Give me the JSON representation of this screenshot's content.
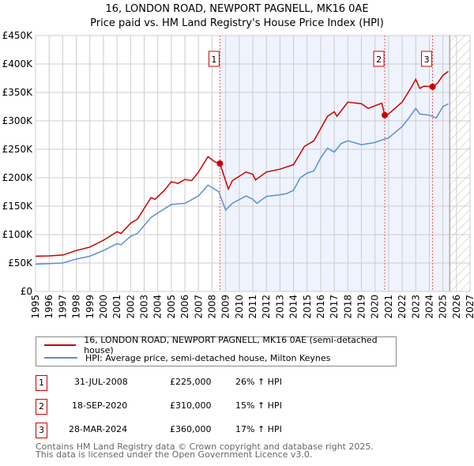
{
  "title_line1": "16, LONDON ROAD, NEWPORT PAGNELL, MK16 0AE",
  "title_line2": "Price paid vs. HM Land Registry's House Price Index (HPI)",
  "chart_data": {
    "type": "line",
    "ylim": [
      0,
      450000
    ],
    "xlim": [
      1995,
      2027
    ],
    "yticks": [
      {
        "v": 0,
        "label": "£0"
      },
      {
        "v": 50000,
        "label": "£50K"
      },
      {
        "v": 100000,
        "label": "£100K"
      },
      {
        "v": 150000,
        "label": "£150K"
      },
      {
        "v": 200000,
        "label": "£200K"
      },
      {
        "v": 250000,
        "label": "£250K"
      },
      {
        "v": 300000,
        "label": "£300K"
      },
      {
        "v": 350000,
        "label": "£350K"
      },
      {
        "v": 400000,
        "label": "£400K"
      },
      {
        "v": 450000,
        "label": "£450K"
      }
    ],
    "xticks": [
      "1995",
      "1996",
      "1997",
      "1998",
      "1999",
      "2000",
      "2001",
      "2002",
      "2003",
      "2004",
      "2005",
      "2006",
      "2007",
      "2008",
      "2009",
      "2010",
      "2011",
      "2012",
      "2013",
      "2014",
      "2015",
      "2016",
      "2017",
      "2018",
      "2019",
      "2020",
      "2021",
      "2022",
      "2023",
      "2024",
      "2025",
      "2026",
      "2027"
    ],
    "forecast_start": 2025.5,
    "series": [
      {
        "name": "16, LONDON ROAD, NEWPORT PAGNELL, MK16 0AE (semi-detached house)",
        "color": "#cc0000",
        "points": [
          [
            1995,
            62000
          ],
          [
            1996,
            62500
          ],
          [
            1997,
            64000
          ],
          [
            1998,
            72000
          ],
          [
            1999,
            78000
          ],
          [
            2000,
            90000
          ],
          [
            2001,
            105000
          ],
          [
            2001.3,
            102000
          ],
          [
            2002,
            120000
          ],
          [
            2002.5,
            127000
          ],
          [
            2003.5,
            165000
          ],
          [
            2003.8,
            162000
          ],
          [
            2004.5,
            178000
          ],
          [
            2005,
            193000
          ],
          [
            2005.5,
            190000
          ],
          [
            2006,
            197000
          ],
          [
            2006.5,
            195000
          ],
          [
            2007,
            210000
          ],
          [
            2007.7,
            237000
          ],
          [
            2008.2,
            228000
          ],
          [
            2008.58,
            225000
          ],
          [
            2009.2,
            180000
          ],
          [
            2009.5,
            195000
          ],
          [
            2010.5,
            210000
          ],
          [
            2011,
            206000
          ],
          [
            2011.2,
            196000
          ],
          [
            2012,
            210000
          ],
          [
            2013,
            215000
          ],
          [
            2014,
            223000
          ],
          [
            2014.8,
            255000
          ],
          [
            2015.5,
            265000
          ],
          [
            2016.5,
            308000
          ],
          [
            2017,
            316000
          ],
          [
            2017.2,
            308000
          ],
          [
            2018,
            333000
          ],
          [
            2019,
            330000
          ],
          [
            2019.5,
            322000
          ],
          [
            2020.5,
            331000
          ],
          [
            2020.72,
            310000
          ],
          [
            2021,
            312000
          ],
          [
            2022,
            333000
          ],
          [
            2022.7,
            360000
          ],
          [
            2023,
            373000
          ],
          [
            2023.3,
            357000
          ],
          [
            2023.6,
            361000
          ],
          [
            2024.24,
            360000
          ],
          [
            2024.6,
            366000
          ],
          [
            2025,
            380000
          ],
          [
            2025.4,
            387000
          ]
        ]
      },
      {
        "name": "HPI: Average price, semi-detached house, Milton Keynes",
        "color": "#5b8fd4",
        "points": [
          [
            1995,
            48000
          ],
          [
            1997,
            50000
          ],
          [
            1998,
            57000
          ],
          [
            1999,
            62000
          ],
          [
            2000,
            72000
          ],
          [
            2001,
            84000
          ],
          [
            2001.3,
            82000
          ],
          [
            2002,
            97000
          ],
          [
            2002.5,
            102000
          ],
          [
            2003.5,
            130000
          ],
          [
            2004,
            138000
          ],
          [
            2005,
            153000
          ],
          [
            2006,
            155000
          ],
          [
            2007,
            168000
          ],
          [
            2007.7,
            187000
          ],
          [
            2008.5,
            175000
          ],
          [
            2009,
            143000
          ],
          [
            2009.5,
            155000
          ],
          [
            2010.5,
            168000
          ],
          [
            2011,
            162000
          ],
          [
            2011.3,
            155000
          ],
          [
            2012,
            167000
          ],
          [
            2013,
            170000
          ],
          [
            2013.5,
            172000
          ],
          [
            2014,
            178000
          ],
          [
            2014.5,
            200000
          ],
          [
            2015,
            208000
          ],
          [
            2015.5,
            212000
          ],
          [
            2016,
            235000
          ],
          [
            2016.5,
            252000
          ],
          [
            2017,
            245000
          ],
          [
            2017.5,
            260000
          ],
          [
            2018,
            265000
          ],
          [
            2019,
            258000
          ],
          [
            2020,
            262000
          ],
          [
            2020.7,
            268000
          ],
          [
            2021,
            270000
          ],
          [
            2022,
            290000
          ],
          [
            2022.5,
            305000
          ],
          [
            2023,
            322000
          ],
          [
            2023.3,
            312000
          ],
          [
            2024,
            310000
          ],
          [
            2024.5,
            305000
          ],
          [
            2025,
            325000
          ],
          [
            2025.4,
            330000
          ]
        ]
      }
    ],
    "sales": [
      {
        "n": "1",
        "x": 2008.58,
        "price": 225000
      },
      {
        "n": "2",
        "x": 2020.72,
        "price": 310000
      },
      {
        "n": "3",
        "x": 2024.24,
        "price": 360000
      }
    ]
  },
  "legend": {
    "property": "16, LONDON ROAD, NEWPORT PAGNELL, MK16 0AE (semi-detached house)",
    "hpi": "HPI: Average price, semi-detached house, Milton Keynes"
  },
  "sales_table": [
    {
      "n": "1",
      "date": "31-JUL-2008",
      "price": "£225,000",
      "delta": "26% ↑ HPI"
    },
    {
      "n": "2",
      "date": "18-SEP-2020",
      "price": "£310,000",
      "delta": "15% ↑ HPI"
    },
    {
      "n": "3",
      "date": "28-MAR-2024",
      "price": "£360,000",
      "delta": "17% ↑ HPI"
    }
  ],
  "footer_line1": "Contains HM Land Registry data © Crown copyright and database right 2025.",
  "footer_line2": "This data is licensed under the Open Government Licence v3.0."
}
